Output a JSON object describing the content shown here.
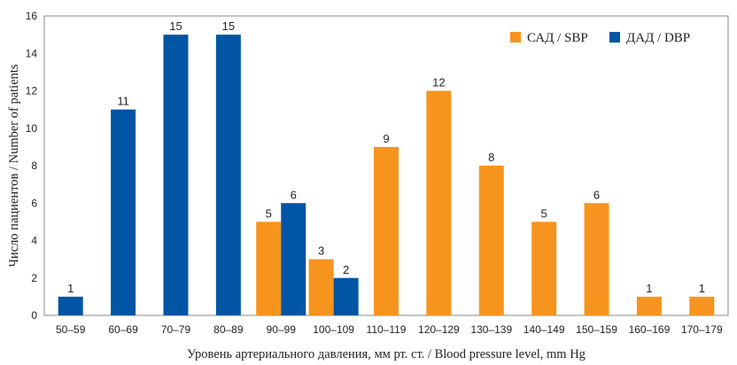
{
  "chart_data": {
    "type": "bar",
    "xlabel": "Уровень артериального давления, мм рт. ст. / Blood pressure level, mm Hg",
    "ylabel": "Число пациентов / Number of patients",
    "ylim": [
      0,
      16
    ],
    "yticks": [
      "0",
      "2",
      "4",
      "6",
      "8",
      "10",
      "12",
      "14",
      "16"
    ],
    "categories": [
      "50–59",
      "60–69",
      "70–79",
      "80–89",
      "90–99",
      "100–109",
      "110–119",
      "120–129",
      "130–139",
      "140–149",
      "150–159",
      "160–169",
      "170–179"
    ],
    "series": [
      {
        "name": "САД / SBP",
        "color": "#F7941D",
        "values": [
          0,
          0,
          0,
          0,
          5,
          3,
          9,
          12,
          8,
          5,
          6,
          1,
          1
        ]
      },
      {
        "name": "ДАД / DBP",
        "color": "#0055A4",
        "values": [
          1,
          11,
          15,
          15,
          6,
          2,
          0,
          0,
          0,
          0,
          0,
          0,
          0
        ]
      }
    ],
    "legend": "top-right",
    "grid": false
  }
}
